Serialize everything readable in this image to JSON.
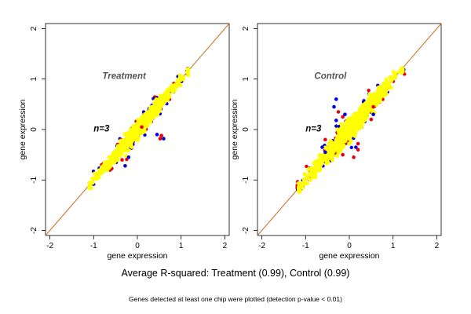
{
  "colors": {
    "background": "#ffffff",
    "identity_line": "#c8782d",
    "point_main": "#ffff00",
    "point_red": "#e8000b",
    "point_blue": "#0000e0",
    "panel_title": "#555555"
  },
  "figure": {
    "caption": "Average R-squared: Treatment (0.99), Control (0.99)",
    "note": "Genes detected at least one chip were plotted (detection p-value < 0.01)"
  },
  "chart_data": [
    {
      "type": "scatter",
      "title": "Treatment",
      "annotation": "n=3",
      "xlabel": "gene expression",
      "ylabel": "gene expression",
      "xlim": [
        -2.1,
        2.1
      ],
      "ylim": [
        -2.1,
        2.1
      ],
      "xticks": [
        -2,
        -1,
        0,
        1,
        2
      ],
      "yticks": [
        -2,
        -1,
        0,
        1,
        2
      ],
      "identity_line": true,
      "cloud": {
        "x_min": -1.1,
        "x_max": 1.15,
        "spread": 0.09
      },
      "outliers_red": [
        [
          0.55,
          -0.12
        ],
        [
          0.52,
          -0.18
        ],
        [
          -0.35,
          -0.6
        ],
        [
          0.1,
          0.05
        ]
      ],
      "outliers_blue": [
        [
          0.6,
          -0.18
        ],
        [
          0.45,
          -0.1
        ],
        [
          -0.28,
          -0.72
        ],
        [
          -0.2,
          -0.55
        ]
      ]
    },
    {
      "type": "scatter",
      "title": "Control",
      "annotation": "n=3",
      "xlabel": "gene expression",
      "ylabel": "gene expression",
      "xlim": [
        -2.1,
        2.1
      ],
      "ylim": [
        -2.1,
        2.1
      ],
      "xticks": [
        -2,
        -1,
        0,
        1,
        2
      ],
      "yticks": [
        -2,
        -1,
        0,
        1,
        2
      ],
      "identity_line": true,
      "cloud": {
        "x_min": -1.15,
        "x_max": 1.2,
        "spread": 0.12
      },
      "outliers_red": [
        [
          -0.25,
          0.35
        ],
        [
          -0.15,
          0.25
        ],
        [
          0.2,
          -0.4
        ],
        [
          0.1,
          -0.55
        ],
        [
          -0.55,
          -0.2
        ],
        [
          0.5,
          0.2
        ],
        [
          0.55,
          0.45
        ],
        [
          -0.15,
          -0.5
        ],
        [
          0.2,
          -0.28
        ]
      ],
      "outliers_blue": [
        [
          -0.3,
          0.6
        ],
        [
          -0.35,
          0.45
        ],
        [
          -0.3,
          0.18
        ],
        [
          -0.62,
          -0.35
        ],
        [
          -0.55,
          -0.45
        ],
        [
          0.55,
          0.3
        ],
        [
          0.15,
          -0.35
        ],
        [
          -0.1,
          0.3
        ]
      ]
    }
  ]
}
